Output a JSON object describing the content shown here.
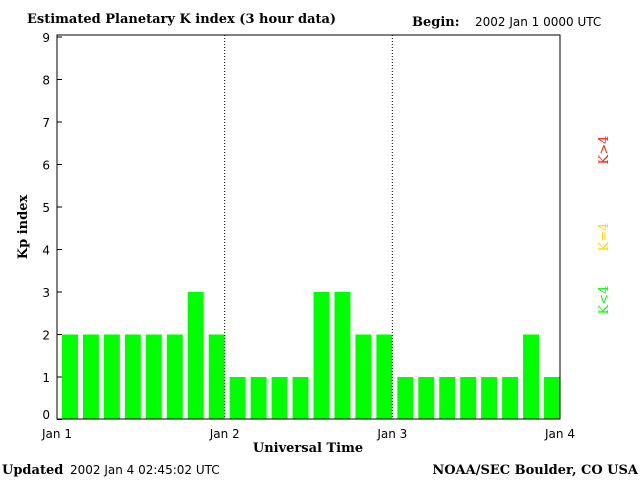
{
  "chart_data": {
    "type": "bar",
    "title": "Estimated Planetary K index (3 hour data)",
    "begin_label": "Begin:",
    "begin_value": "2002 Jan 1 0000 UTC",
    "xlabel": "Universal Time",
    "ylabel": "Kp index",
    "ylim": [
      0,
      9
    ],
    "yticks": [
      "0",
      "1",
      "2",
      "3",
      "4",
      "5",
      "6",
      "7",
      "8",
      "9"
    ],
    "xticks": [
      "Jan 1",
      "Jan 2",
      "Jan 3",
      "Jan 4"
    ],
    "values": [
      2,
      2,
      2,
      2,
      2,
      2,
      3,
      2,
      1,
      1,
      1,
      1,
      3,
      3,
      2,
      2,
      1,
      1,
      1,
      1,
      1,
      1,
      2,
      1
    ],
    "legend": [
      {
        "label": "K>4",
        "color": "#ff2000"
      },
      {
        "label": "K=4",
        "color": "#ffd800"
      },
      {
        "label": "K<4",
        "color": "#00ff00"
      }
    ],
    "grid": "dotted vertical at day boundaries"
  },
  "footer": {
    "updated_label": "Updated",
    "updated_value": "2002 Jan  4 02:45:02 UTC",
    "credit": "NOAA/SEC Boulder, CO USA"
  }
}
